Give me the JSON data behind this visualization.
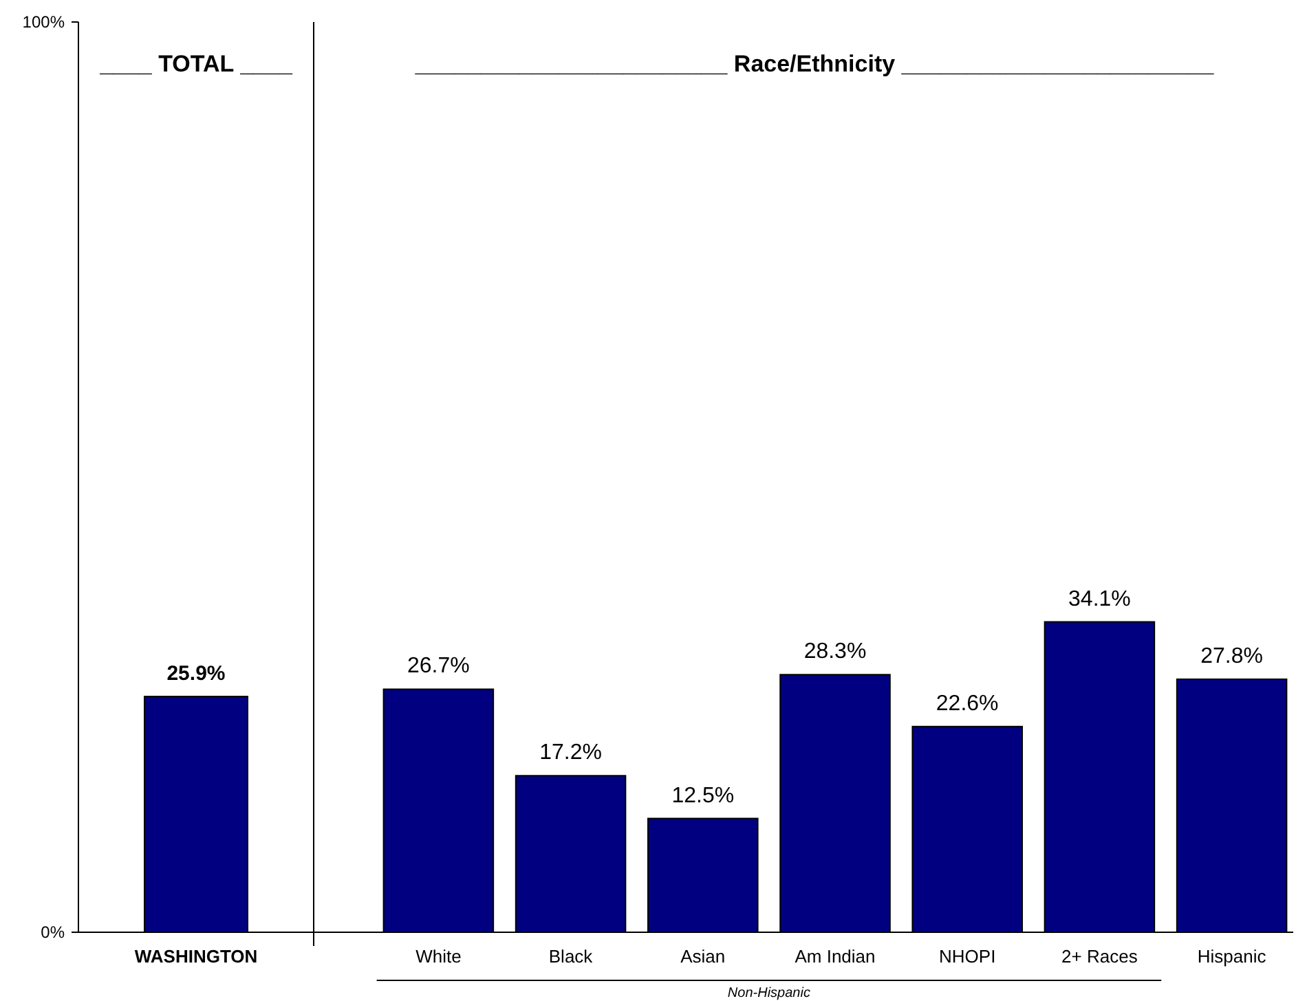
{
  "chart_data": [
    {
      "type": "bar",
      "categories": [
        "WASHINGTON"
      ],
      "values": [
        25.9
      ],
      "value_labels": [
        "25.9%"
      ],
      "color": "#000080",
      "ylim": [
        0,
        100
      ],
      "yticks": [
        {
          "value": 0,
          "label": "0%"
        },
        {
          "value": 100,
          "label": "100%"
        }
      ],
      "annotations": [
        "____ TOTAL ____"
      ]
    },
    {
      "type": "bar",
      "categories": [
        "White",
        "Black",
        "Asian",
        "Am Indian",
        "NHOPI",
        "2+ Races",
        "Hispanic"
      ],
      "values": [
        26.7,
        17.2,
        12.5,
        28.3,
        22.6,
        34.1,
        27.8
      ],
      "value_labels": [
        "26.7%",
        "17.2%",
        "12.5%",
        "28.3%",
        "22.6%",
        "34.1%",
        "27.8%"
      ],
      "color": "#000080",
      "ylim": [
        0,
        100
      ],
      "tick_labels": "x",
      "annotations": [
        "________________________ Race/Ethnicity ________________________",
        "Non-Hispanic"
      ]
    }
  ]
}
